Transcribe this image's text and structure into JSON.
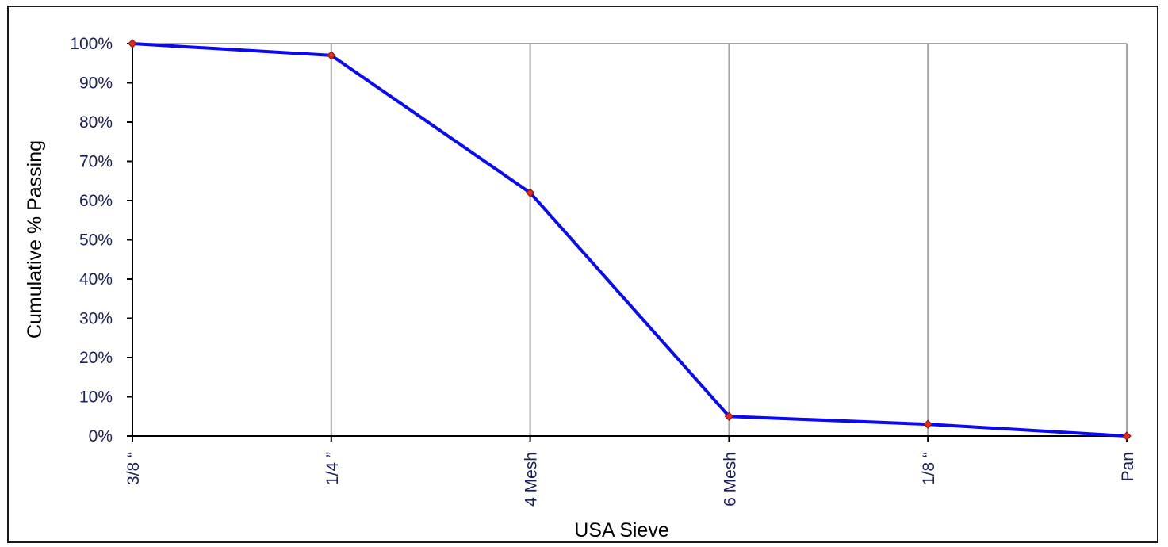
{
  "chart_data": {
    "type": "line",
    "title": "",
    "xlabel": "USA Sieve",
    "ylabel": "Cumulative % Passing",
    "categories": [
      "3/8 “",
      "1/4 ”",
      "4 Mesh",
      "6 Mesh",
      "1/8 “",
      "Pan"
    ],
    "series": [
      {
        "values": [
          100,
          97,
          62,
          5,
          3,
          0
        ]
      }
    ],
    "ylim": [
      0,
      100
    ],
    "yticks": [
      0,
      10,
      20,
      30,
      40,
      50,
      60,
      70,
      80,
      90,
      100
    ],
    "ytick_labels": [
      "0%",
      "10%",
      "20%",
      "30%",
      "40%",
      "50%",
      "60%",
      "70%",
      "80%",
      "90%",
      "100%"
    ],
    "grid": "vertical",
    "legend": "none",
    "colors": {
      "line": "#0a0af0",
      "marker": "#e8261b",
      "grid": "#a6a6a6",
      "tick_text": "#1a1f5c"
    }
  }
}
